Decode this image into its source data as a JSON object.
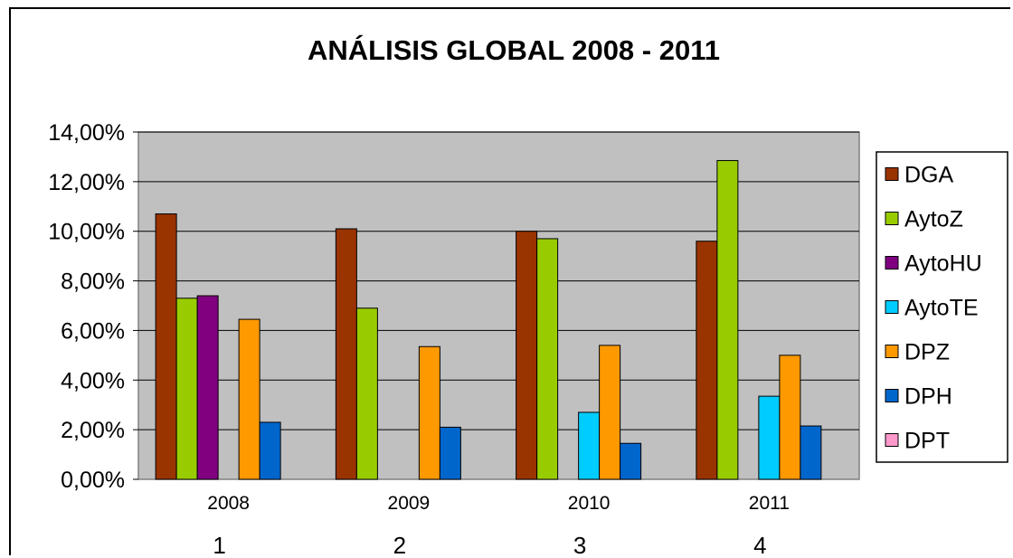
{
  "chart_data": {
    "type": "bar",
    "title": "ANÁLISIS GLOBAL 2008 - 2011",
    "categories": [
      "2008",
      "2009",
      "2010",
      "2011"
    ],
    "category_index_labels": [
      "1",
      "2",
      "3",
      "4"
    ],
    "ylim": [
      0,
      14
    ],
    "y_ticks": [
      "0,00%",
      "2,00%",
      "4,00%",
      "6,00%",
      "8,00%",
      "10,00%",
      "12,00%",
      "14,00%"
    ],
    "unit": "%",
    "grid": true,
    "plot_background": "#c0c0c0",
    "legend_position": "right",
    "series": [
      {
        "name": "DGA",
        "color": "#993300",
        "values": [
          10.7,
          10.1,
          10.0,
          9.6
        ]
      },
      {
        "name": "AytoZ",
        "color": "#99cc00",
        "values": [
          7.3,
          6.9,
          9.7,
          12.85
        ]
      },
      {
        "name": "AytoHU",
        "color": "#800080",
        "values": [
          7.4,
          null,
          null,
          null
        ]
      },
      {
        "name": "AytoTE",
        "color": "#00ccff",
        "values": [
          null,
          null,
          2.7,
          3.35
        ]
      },
      {
        "name": "DPZ",
        "color": "#ff9900",
        "values": [
          6.45,
          5.35,
          5.4,
          5.0
        ]
      },
      {
        "name": "DPH",
        "color": "#0066cc",
        "values": [
          2.3,
          2.1,
          1.45,
          2.15
        ]
      },
      {
        "name": "DPT",
        "color": "#ff99cc",
        "values": [
          null,
          null,
          null,
          null
        ]
      }
    ]
  }
}
